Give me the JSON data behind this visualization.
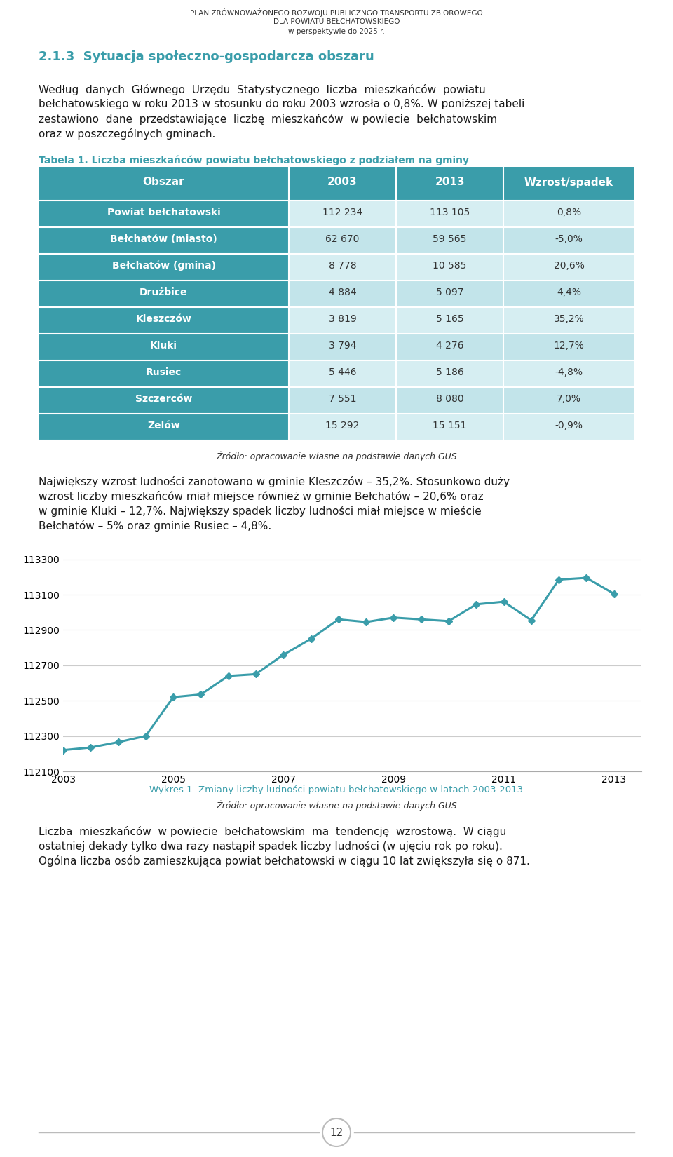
{
  "header_line1": "PLAN ZRÓWNOWAŻONEGO ROZWOJU PUBLICZNGO TRANSPORTU ZBIOROWEGO",
  "header_line2": "DLA POWIATU BEŁCHATOWSKIEGO",
  "header_line3": "w perspektywie do 2025 r.",
  "section_title": "2.1.3  Sytuacja społeczno-gospodarcza obszaru",
  "table_title": "Tabela 1. Liczba mieszkańców powiatu bełchatowskiego z podziałem na gminy",
  "table_header": [
    "Obszar",
    "2003",
    "2013",
    "Wzrost/spadek"
  ],
  "table_rows": [
    [
      "Powiat bełchatowski",
      "112 234",
      "113 105",
      "0,8%"
    ],
    [
      "Bełchatów (miasto)",
      "62 670",
      "59 565",
      "-5,0%"
    ],
    [
      "Bełchatów (gmina)",
      "8 778",
      "10 585",
      "20,6%"
    ],
    [
      "Drużbice",
      "4 884",
      "5 097",
      "4,4%"
    ],
    [
      "Kleszczów",
      "3 819",
      "5 165",
      "35,2%"
    ],
    [
      "Kluki",
      "3 794",
      "4 276",
      "12,7%"
    ],
    [
      "Rusiec",
      "5 446",
      "5 186",
      "-4,8%"
    ],
    [
      "Szczerców",
      "7 551",
      "8 080",
      "7,0%"
    ],
    [
      "Zelów",
      "15 292",
      "15 151",
      "-0,9%"
    ]
  ],
  "table_source": "Źródło: opracowanie własne na podstawie danych GUS",
  "header_color": "#3a9daa",
  "row_teal_color": "#3a9daa",
  "row_light1_color": "#d6eef2",
  "row_light2_color": "#c2e4ea",
  "chart_x": [
    2003,
    2003.5,
    2004,
    2004.5,
    2005,
    2005.5,
    2006,
    2006.5,
    2007,
    2007.5,
    2008,
    2008.5,
    2009,
    2009.5,
    2010,
    2010.5,
    2011,
    2011.5,
    2012,
    2012.5,
    2013
  ],
  "chart_y": [
    112220,
    112235,
    112265,
    112300,
    112520,
    112535,
    112640,
    112650,
    112760,
    112850,
    112960,
    112945,
    112970,
    112960,
    112950,
    113045,
    113060,
    112955,
    113185,
    113195,
    113105
  ],
  "chart_color": "#3a9daa",
  "chart_xlim": [
    2003,
    2013.5
  ],
  "chart_ylim": [
    112100,
    113350
  ],
  "chart_yticks": [
    112100,
    112300,
    112500,
    112700,
    112900,
    113100,
    113300
  ],
  "chart_xticks": [
    2003,
    2005,
    2007,
    2009,
    2011,
    2013
  ],
  "chart_caption": "Wykres 1. Zmiany liczby ludności powiatu bełchatowskiego w latach 2003-2013",
  "chart_source": "Źródło: opracowanie własne na podstawie danych GUS",
  "page_number": "12",
  "bg_color": "#ffffff",
  "text_color": "#1a1a1a",
  "teal_color": "#3a9daa"
}
